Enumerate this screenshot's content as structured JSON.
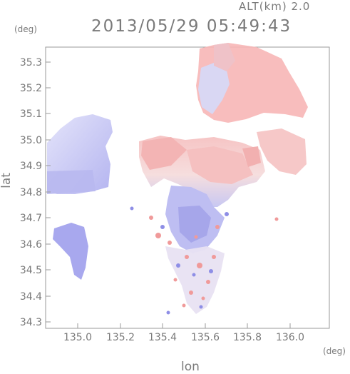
{
  "header": {
    "altitude_label": "ALT(km) 2.0",
    "datetime": "2013/05/29 05:49:43"
  },
  "axes": {
    "x_label": "lon",
    "y_label": "lat",
    "x_unit": "(deg)",
    "y_unit": "(deg)",
    "x_ticks": [
      "135.0",
      "135.2",
      "135.4",
      "135.6",
      "135.8",
      "136.0"
    ],
    "y_ticks": [
      "34.3",
      "34.4",
      "34.5",
      "34.6",
      "34.7",
      "34.8",
      "34.9",
      "35.0",
      "35.1",
      "35.2",
      "35.3"
    ]
  },
  "colors": {
    "positive": "#f4a0a0",
    "negative": "#a8a8ee",
    "frame": "#9a9a9a"
  }
}
